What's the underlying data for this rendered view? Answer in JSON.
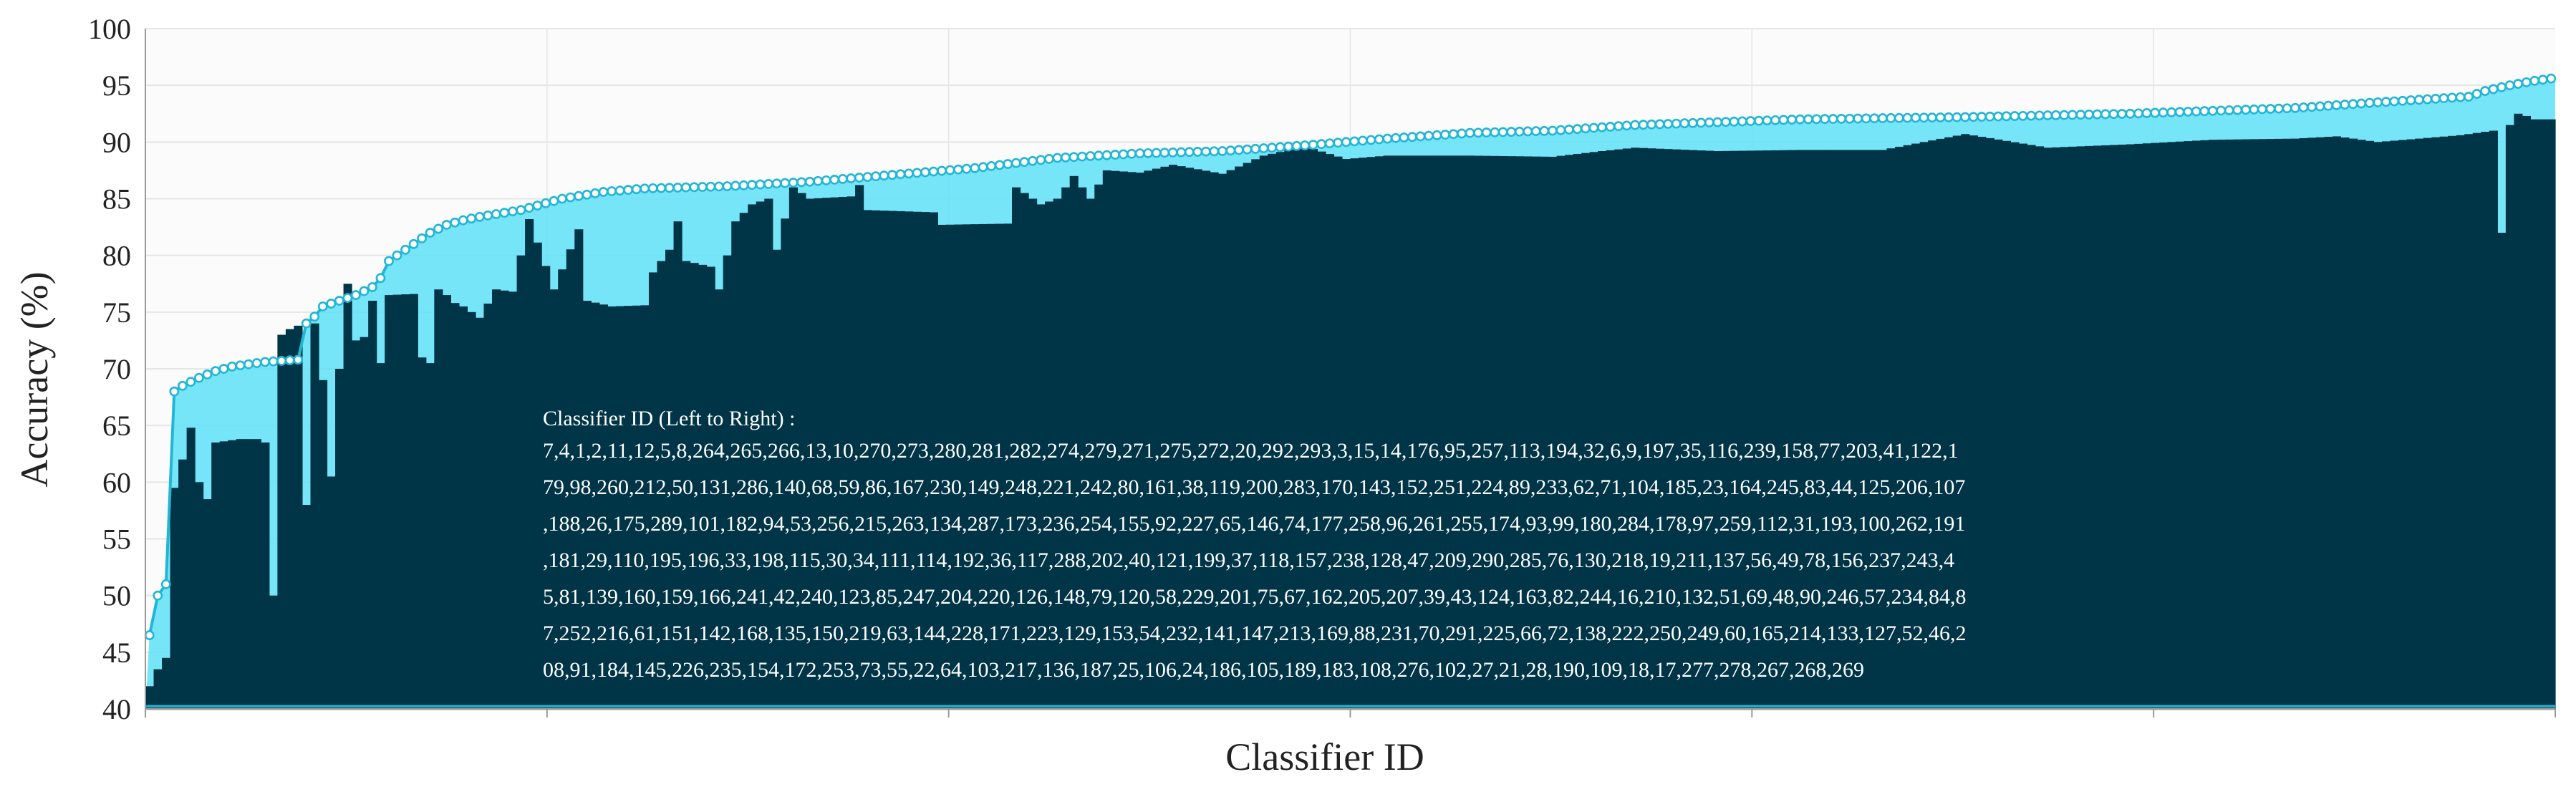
{
  "colors": {
    "background": "#ffffff",
    "plot_background": "#fbfbfb",
    "grid": "#e6e6e6",
    "bar": "#003447",
    "area": "#5fe0f7",
    "line": "#21b6d6",
    "marker_fill": "#ffffff",
    "text": "#222222",
    "note_text": "#ffffff"
  },
  "chart_data": {
    "type": "bar",
    "xlabel": "Classifier ID",
    "ylabel": "Accuracy (%)",
    "ylim": [
      40,
      100
    ],
    "yticks": [
      40,
      45,
      50,
      55,
      60,
      65,
      70,
      75,
      80,
      85,
      90,
      95,
      100
    ],
    "grid": true,
    "n_classifiers": 292,
    "series": [
      {
        "kind": "bar",
        "description": "individual classifier accuracy"
      },
      {
        "kind": "line-area",
        "markers": true,
        "description": "cumulative accuracy"
      }
    ],
    "line_anchors": [
      [
        0,
        46.5
      ],
      [
        1,
        50
      ],
      [
        2,
        51
      ],
      [
        3,
        68
      ],
      [
        4,
        68.5
      ],
      [
        6,
        69.2
      ],
      [
        8,
        69.8
      ],
      [
        10,
        70.2
      ],
      [
        12,
        70.4
      ],
      [
        14,
        70.6
      ],
      [
        16,
        70.7
      ],
      [
        18,
        70.8
      ],
      [
        19,
        74
      ],
      [
        20,
        74.6
      ],
      [
        21,
        75.5
      ],
      [
        23,
        76
      ],
      [
        25,
        76.5
      ],
      [
        27,
        77.2
      ],
      [
        28,
        78
      ],
      [
        29,
        79.5
      ],
      [
        30,
        80
      ],
      [
        32,
        81
      ],
      [
        34,
        82
      ],
      [
        36,
        82.7
      ],
      [
        38,
        83.1
      ],
      [
        40,
        83.4
      ],
      [
        45,
        84
      ],
      [
        50,
        85
      ],
      [
        55,
        85.6
      ],
      [
        60,
        85.9
      ],
      [
        70,
        86.1
      ],
      [
        80,
        86.5
      ],
      [
        90,
        87.1
      ],
      [
        100,
        87.7
      ],
      [
        110,
        88.6
      ],
      [
        120,
        89
      ],
      [
        130,
        89.2
      ],
      [
        140,
        89.7
      ],
      [
        150,
        90.3
      ],
      [
        160,
        90.8
      ],
      [
        170,
        91
      ],
      [
        180,
        91.5
      ],
      [
        200,
        92
      ],
      [
        220,
        92.2
      ],
      [
        240,
        92.5
      ],
      [
        260,
        93
      ],
      [
        270,
        93.5
      ],
      [
        281,
        94
      ],
      [
        283,
        94.5
      ],
      [
        286,
        95
      ],
      [
        289,
        95.4
      ],
      [
        291,
        95.6
      ]
    ],
    "bar_anchors": [
      [
        0,
        42
      ],
      [
        1,
        43.5
      ],
      [
        2,
        44.5
      ],
      [
        3,
        59.5
      ],
      [
        4,
        62
      ],
      [
        5,
        64.8
      ],
      [
        6,
        60
      ],
      [
        7,
        58.5
      ],
      [
        8,
        63.5
      ],
      [
        9,
        63.6
      ],
      [
        10,
        63.7
      ],
      [
        11,
        63.8
      ],
      [
        12,
        63.8
      ],
      [
        13,
        63.8
      ],
      [
        14,
        63.5
      ],
      [
        15,
        50
      ],
      [
        16,
        73
      ],
      [
        17,
        73.5
      ],
      [
        18,
        73.8
      ],
      [
        19,
        58
      ],
      [
        20,
        74
      ],
      [
        21,
        69
      ],
      [
        22,
        60.5
      ],
      [
        23,
        70
      ],
      [
        24,
        77.5
      ],
      [
        25,
        72.5
      ],
      [
        26,
        72.8
      ],
      [
        27,
        76
      ],
      [
        28,
        70.5
      ],
      [
        29,
        76.5
      ],
      [
        32,
        76.6
      ],
      [
        33,
        71
      ],
      [
        34,
        70.5
      ],
      [
        35,
        77
      ],
      [
        36,
        76.5
      ],
      [
        37,
        75.8
      ],
      [
        38,
        75.5
      ],
      [
        40,
        74.5
      ],
      [
        42,
        77
      ],
      [
        44,
        76.8
      ],
      [
        46,
        83.2
      ],
      [
        49,
        77
      ],
      [
        52,
        82.3
      ],
      [
        53,
        76
      ],
      [
        56,
        75.5
      ],
      [
        60,
        75.6
      ],
      [
        61,
        78.5
      ],
      [
        63,
        80.5
      ],
      [
        64,
        83
      ],
      [
        65,
        79.5
      ],
      [
        68,
        79
      ],
      [
        69,
        77
      ],
      [
        71,
        83
      ],
      [
        73,
        84.5
      ],
      [
        75,
        85
      ],
      [
        76,
        80.5
      ],
      [
        78,
        86
      ],
      [
        80,
        85
      ],
      [
        85,
        85.2
      ],
      [
        86,
        86.2
      ],
      [
        87,
        84
      ],
      [
        95,
        83.8
      ],
      [
        96,
        82.7
      ],
      [
        104,
        82.8
      ],
      [
        105,
        86
      ],
      [
        107,
        85
      ],
      [
        108,
        84.5
      ],
      [
        110,
        85
      ],
      [
        112,
        87
      ],
      [
        114,
        85
      ],
      [
        116,
        87.5
      ],
      [
        120,
        87.3
      ],
      [
        124,
        88
      ],
      [
        130,
        87.2
      ],
      [
        135,
        88.8
      ],
      [
        140,
        89.6
      ],
      [
        145,
        88.5
      ],
      [
        150,
        88.8
      ],
      [
        160,
        88.8
      ],
      [
        170,
        88.7
      ],
      [
        176,
        89.2
      ],
      [
        180,
        89.5
      ],
      [
        190,
        89.2
      ],
      [
        200,
        89.3
      ],
      [
        210,
        89.3
      ],
      [
        220,
        90.7
      ],
      [
        230,
        89.5
      ],
      [
        240,
        89.8
      ],
      [
        250,
        90.2
      ],
      [
        260,
        90.3
      ],
      [
        265,
        90.5
      ],
      [
        270,
        90
      ],
      [
        280,
        90.6
      ],
      [
        282,
        90.8
      ],
      [
        284,
        91
      ],
      [
        285,
        82
      ],
      [
        286,
        91.5
      ],
      [
        287,
        92.5
      ],
      [
        288,
        92.3
      ],
      [
        289,
        92
      ],
      [
        291,
        92
      ]
    ],
    "annotation": {
      "title": "Classifier ID (Left to Right) :",
      "lines": [
        "7,4,1,2,11,12,5,8,264,265,266,13,10,270,273,280,281,282,274,279,271,275,272,20,292,293,3,15,14,176,95,257,113,194,32,6,9,197,35,116,239,158,77,203,41,122,1",
        "79,98,260,212,50,131,286,140,68,59,86,167,230,149,248,221,242,80,161,38,119,200,283,170,143,152,251,224,89,233,62,71,104,185,23,164,245,83,44,125,206,107",
        ",188,26,175,289,101,182,94,53,256,215,263,134,287,173,236,254,155,92,227,65,146,74,177,258,96,261,255,174,93,99,180,284,178,97,259,112,31,193,100,262,191",
        ",181,29,110,195,196,33,198,115,30,34,111,114,192,36,117,288,202,40,121,199,37,118,157,238,128,47,209,290,285,76,130,218,19,211,137,56,49,78,156,237,243,4",
        "5,81,139,160,159,166,241,42,240,123,85,247,204,220,126,148,79,120,58,229,201,75,67,162,205,207,39,43,124,163,82,244,16,210,132,51,69,48,90,246,57,234,84,8",
        "7,252,216,61,151,142,168,135,150,219,63,144,228,171,223,129,153,54,232,141,147,213,169,88,231,70,291,225,66,72,138,222,250,249,60,165,214,133,127,52,46,2",
        "08,91,184,145,226,235,154,172,253,73,55,22,64,103,217,136,187,25,106,24,186,105,189,183,108,276,102,27,21,28,190,109,18,17,277,278,267,268,269"
      ]
    }
  }
}
